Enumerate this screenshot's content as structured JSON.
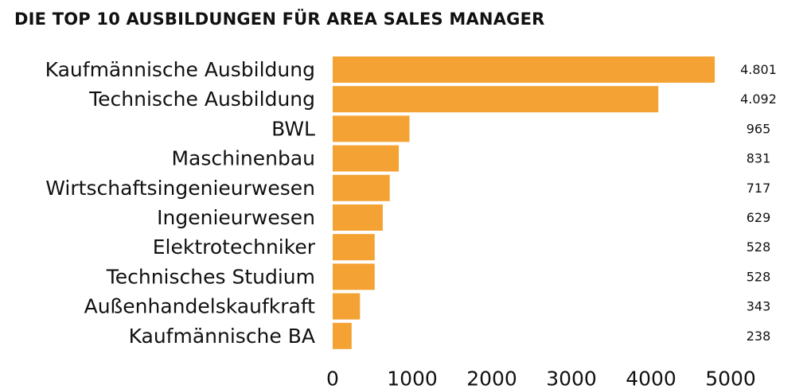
{
  "chart_data": {
    "type": "bar",
    "orientation": "horizontal",
    "title": "DIE TOP 10 AUSBILDUNGEN FÜR AREA SALES MANAGER",
    "categories": [
      "Kaufmännische Ausbildung",
      "Technische Ausbildung",
      "BWL",
      "Maschinenbau",
      "Wirtschaftsingenieurwesen",
      "Ingenieurwesen",
      "Elektrotechniker",
      "Technisches Studium",
      "Außenhandelskaufkraft",
      "Kaufmännische BA"
    ],
    "values": [
      4801,
      4092,
      965,
      831,
      717,
      629,
      528,
      528,
      343,
      238
    ],
    "value_labels": [
      "4.801",
      "4.092",
      "965",
      "831",
      "717",
      "629",
      "528",
      "528",
      "343",
      "238"
    ],
    "xlim": [
      0,
      5000
    ],
    "xticks": [
      0,
      1000,
      2000,
      3000,
      4000,
      5000
    ],
    "xtick_labels": [
      "0",
      "1000",
      "2000",
      "3000",
      "4000",
      "5000"
    ],
    "xlabel": "",
    "ylabel": "",
    "grid": false,
    "legend": "none",
    "bar_color": "#F4A233"
  }
}
